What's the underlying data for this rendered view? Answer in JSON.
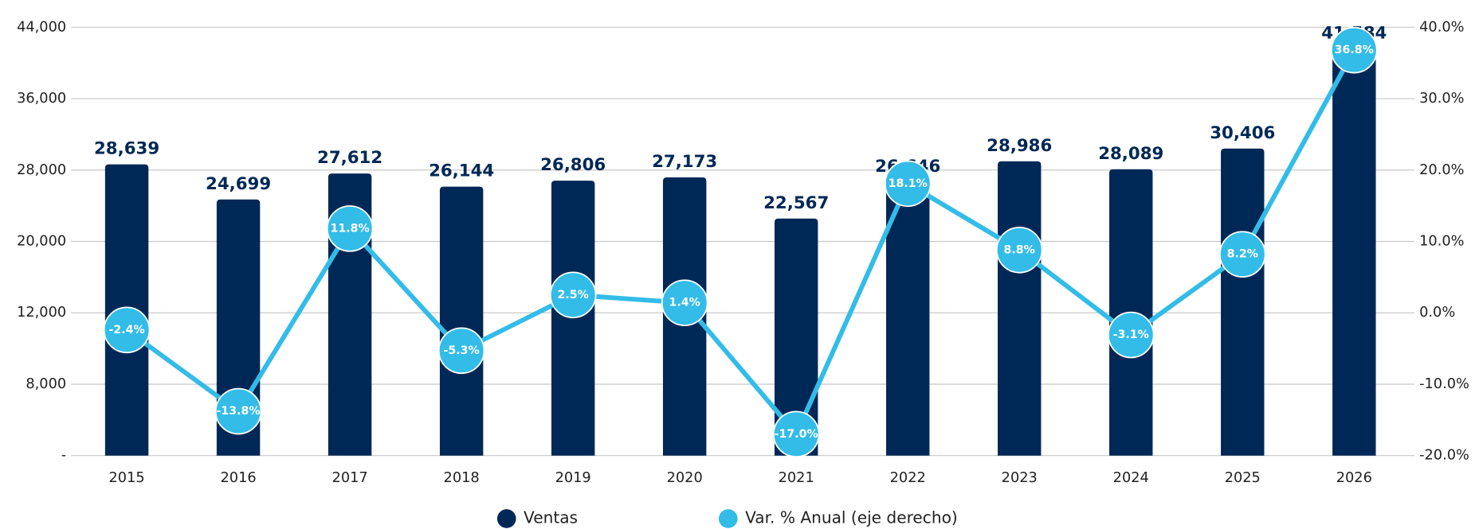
{
  "chart_data": {
    "type": "bar",
    "categories": [
      "2015",
      "2016",
      "2017",
      "2018",
      "2019",
      "2020",
      "2021",
      "2022",
      "2023",
      "2024",
      "2025",
      "2026"
    ],
    "series": [
      {
        "name": "Ventas",
        "type": "bar",
        "color": "#002856",
        "values": [
          28639,
          24699,
          27612,
          26144,
          26806,
          27173,
          22567,
          26646,
          28986,
          28089,
          30406,
          41584
        ],
        "value_labels": [
          "28,639",
          "24,699",
          "27,612",
          "26,144",
          "26,806",
          "27,173",
          "22,567",
          "26,646",
          "28,986",
          "28,089",
          "30,406",
          "41,584"
        ]
      },
      {
        "name": "Var. % Anual (eje derecho)",
        "type": "line",
        "axis": "y2",
        "color": "#33bce8",
        "values": [
          -2.4,
          -13.8,
          11.8,
          -5.3,
          2.5,
          1.4,
          -17.0,
          18.1,
          8.8,
          -3.1,
          8.2,
          36.8
        ],
        "value_labels": [
          "-2.4%",
          "-13.8%",
          "11.8%",
          "-5.3%",
          "2.5%",
          "1.4%",
          "-17.0%",
          "18.1%",
          "8.8%",
          "-3.1%",
          "8.2%",
          "36.8%"
        ]
      }
    ],
    "ylim": [
      0,
      44000
    ],
    "yticks": [
      {
        "value": 0,
        "label": "-"
      },
      {
        "value": 8000,
        "label": "8,000"
      },
      {
        "value": 12000,
        "label": "12,000"
      },
      {
        "value": 20000,
        "label": "20,000"
      },
      {
        "value": 28000,
        "label": "28,000"
      },
      {
        "value": 36000,
        "label": "36,000"
      },
      {
        "value": 44000,
        "label": "44,000"
      }
    ],
    "y2lim": [
      -20,
      40
    ],
    "y2ticks": [
      {
        "value": -20,
        "label": "-20.0%"
      },
      {
        "value": -10,
        "label": "-10.0%"
      },
      {
        "value": 0,
        "label": "0.0%"
      },
      {
        "value": 10,
        "label": "10.0%"
      },
      {
        "value": 20,
        "label": "20.0%"
      },
      {
        "value": 30,
        "label": "30.0%"
      },
      {
        "value": 40,
        "label": "40.0%"
      }
    ],
    "grid": true,
    "legend": "bottom"
  }
}
